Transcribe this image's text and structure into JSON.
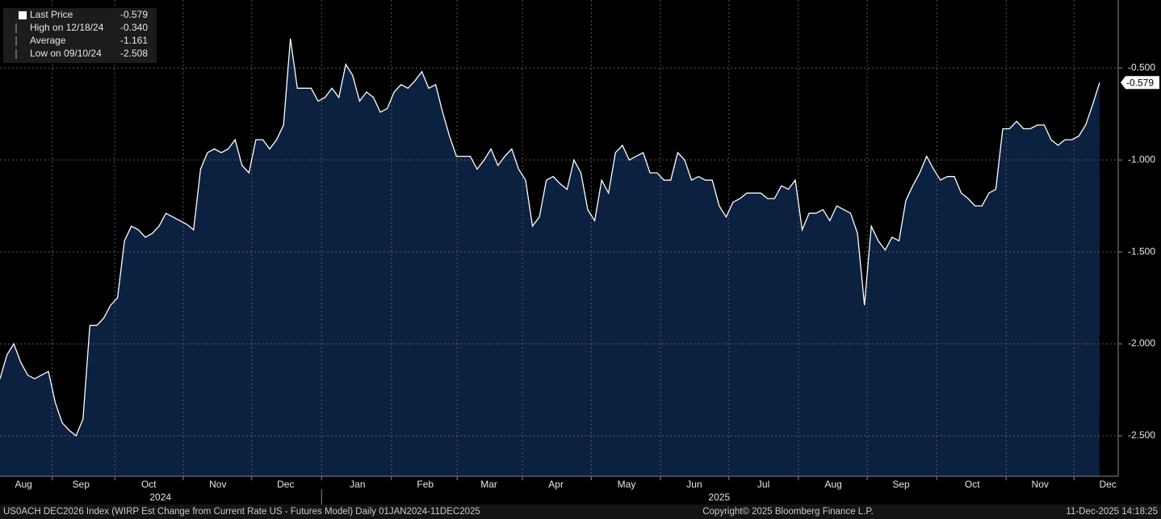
{
  "chart_data": {
    "type": "area",
    "legend": [
      {
        "name": "Last Price",
        "label": "-0.579"
      },
      {
        "name": "High on 12/18/24",
        "label": "-0.340"
      },
      {
        "name": "Average",
        "label": "-1.161"
      },
      {
        "name": "Low on 09/10/24",
        "label": "-2.508"
      }
    ],
    "color": "#0c2140",
    "line_color": "#ffffff",
    "grid": true,
    "values": [
      -2.19,
      -2.06,
      -2.0,
      -2.1,
      -2.17,
      -2.19,
      -2.17,
      -2.15,
      -2.32,
      -2.43,
      -2.47,
      -2.5,
      -2.41,
      -1.9,
      -1.9,
      -1.86,
      -1.79,
      -1.75,
      -1.44,
      -1.36,
      -1.38,
      -1.42,
      -1.4,
      -1.36,
      -1.29,
      -1.31,
      -1.33,
      -1.35,
      -1.38,
      -1.05,
      -0.96,
      -0.94,
      -0.96,
      -0.94,
      -0.89,
      -1.03,
      -1.07,
      -0.89,
      -0.89,
      -0.94,
      -0.89,
      -0.81,
      -0.34,
      -0.61,
      -0.61,
      -0.61,
      -0.68,
      -0.66,
      -0.61,
      -0.66,
      -0.48,
      -0.54,
      -0.68,
      -0.63,
      -0.66,
      -0.74,
      -0.72,
      -0.63,
      -0.59,
      -0.61,
      -0.57,
      -0.52,
      -0.61,
      -0.59,
      -0.74,
      -0.87,
      -0.98,
      -0.98,
      -0.98,
      -1.05,
      -1.0,
      -0.94,
      -1.03,
      -0.98,
      -0.94,
      -1.05,
      -1.11,
      -1.36,
      -1.31,
      -1.11,
      -1.09,
      -1.13,
      -1.16,
      -1.0,
      -1.07,
      -1.27,
      -1.33,
      -1.11,
      -1.18,
      -0.96,
      -0.92,
      -1.0,
      -0.98,
      -0.96,
      -1.07,
      -1.07,
      -1.11,
      -1.11,
      -0.96,
      -1.0,
      -1.11,
      -1.09,
      -1.11,
      -1.11,
      -1.25,
      -1.31,
      -1.23,
      -1.21,
      -1.18,
      -1.18,
      -1.18,
      -1.21,
      -1.21,
      -1.14,
      -1.16,
      -1.11,
      -1.38,
      -1.29,
      -1.29,
      -1.27,
      -1.33,
      -1.25,
      -1.27,
      -1.29,
      -1.4,
      -1.79,
      -1.36,
      -1.44,
      -1.49,
      -1.42,
      -1.44,
      -1.22,
      -1.14,
      -1.07,
      -0.98,
      -1.05,
      -1.11,
      -1.09,
      -1.09,
      -1.18,
      -1.21,
      -1.25,
      -1.25,
      -1.18,
      -1.16,
      -0.83,
      -0.83,
      -0.79,
      -0.83,
      -0.83,
      -0.81,
      -0.81,
      -0.89,
      -0.92,
      -0.89,
      -0.89,
      -0.87,
      -0.81,
      -0.7,
      -0.579
    ],
    "xlim": [
      0,
      161.7
    ],
    "xticks": [
      {
        "value": 3.4,
        "label": "Aug"
      },
      {
        "value": 11.7,
        "label": "Sep"
      },
      {
        "value": 21.5,
        "label": "Oct"
      },
      {
        "value": 31.5,
        "label": "Nov"
      },
      {
        "value": 41.3,
        "label": "Dec"
      },
      {
        "value": 51.7,
        "label": "Jan"
      },
      {
        "value": 61.5,
        "label": "Feb"
      },
      {
        "value": 70.7,
        "label": "Mar"
      },
      {
        "value": 80.4,
        "label": "Apr"
      },
      {
        "value": 90.6,
        "label": "May"
      },
      {
        "value": 100.4,
        "label": "Jun"
      },
      {
        "value": 110.4,
        "label": "Jul"
      },
      {
        "value": 120.5,
        "label": "Aug"
      },
      {
        "value": 130.3,
        "label": "Sep"
      },
      {
        "value": 140.6,
        "label": "Oct"
      },
      {
        "value": 150.4,
        "label": "Nov"
      },
      {
        "value": 160.2,
        "label": "Dec"
      }
    ],
    "year_ticks": [
      {
        "value": 23.2,
        "label": "2024"
      },
      {
        "value": 104,
        "label": "2025"
      }
    ],
    "ylim": [
      -2.72,
      -0.13
    ],
    "yticks": [
      {
        "value": -0.5,
        "label": "-0.500"
      },
      {
        "value": -1.0,
        "label": "-1.000"
      },
      {
        "value": -1.5,
        "label": "-1.500"
      },
      {
        "value": -2.0,
        "label": "-2.000"
      },
      {
        "value": -2.5,
        "label": "-2.500"
      }
    ],
    "last_label": "-0.579",
    "footer": {
      "left": "US0ACH DEC2026 Index (WIRP Est Change from Current Rate US - Futures Model) Daily 01JAN2024-11DEC2025",
      "center": "Copyright© 2025 Bloomberg Finance L.P.",
      "right": "11-Dec-2025 14:18:25"
    }
  }
}
